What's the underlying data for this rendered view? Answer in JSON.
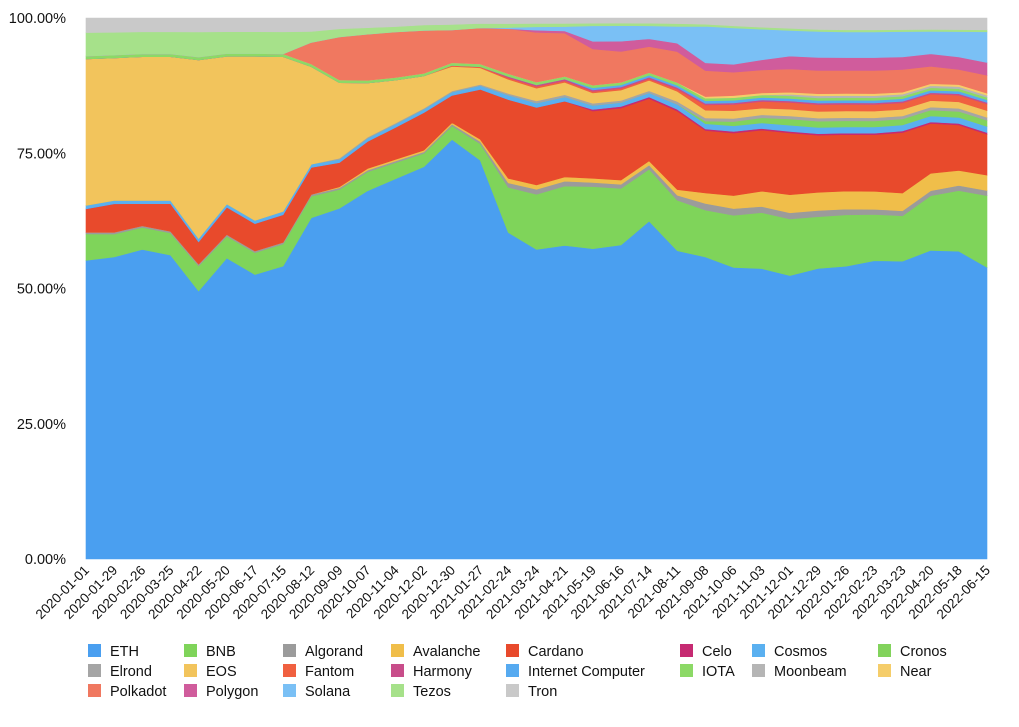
{
  "chart_data": {
    "type": "area",
    "stacked": true,
    "normalized": true,
    "title": "",
    "xlabel": "",
    "ylabel": "",
    "ylim": [
      0,
      100
    ],
    "y_ticks": [
      "0.00%",
      "25.00%",
      "50.00%",
      "75.00%",
      "100.00%"
    ],
    "x_tick_labels": [
      "2020-01-01",
      "2020-01-29",
      "2020-02-26",
      "2020-03-25",
      "2020-04-22",
      "2020-05-20",
      "2020-06-17",
      "2020-07-15",
      "2020-08-12",
      "2020-09-09",
      "2020-10-07",
      "2020-11-04",
      "2020-12-02",
      "2020-12-30",
      "2021-01-27",
      "2021-02-24",
      "2021-03-24",
      "2021-04-21",
      "2021-05-19",
      "2021-06-16",
      "2021-07-14",
      "2021-08-11",
      "2021-09-08",
      "2021-10-06",
      "2021-11-03",
      "2021-12-01",
      "2021-12-29",
      "2022-01-26",
      "2022-02-23",
      "2022-03-23",
      "2022-04-20",
      "2022-05-18",
      "2022-06-15"
    ],
    "x": [
      "2020-01-01",
      "2020-01-29",
      "2020-02-26",
      "2020-03-25",
      "2020-04-22",
      "2020-05-20",
      "2020-06-17",
      "2020-07-15",
      "2020-08-12",
      "2020-09-09",
      "2020-10-07",
      "2020-11-04",
      "2020-12-02",
      "2020-12-30",
      "2021-01-27",
      "2021-02-24",
      "2021-03-24",
      "2021-04-21",
      "2021-05-19",
      "2021-06-16",
      "2021-07-14",
      "2021-08-11",
      "2021-09-08",
      "2021-10-06",
      "2021-11-03",
      "2021-12-01",
      "2021-12-29",
      "2022-01-26",
      "2022-02-23",
      "2022-03-23",
      "2022-04-20",
      "2022-05-18",
      "2022-06-15"
    ],
    "legend_position": "bottom",
    "grid": false,
    "series": [
      {
        "name": "ETH",
        "color": "#4a9ff0",
        "values": [
          51,
          53,
          56,
          55,
          48,
          55,
          52,
          53,
          63,
          65,
          68,
          71,
          73,
          77,
          72,
          58,
          56,
          58,
          60,
          61,
          65,
          55,
          58,
          56,
          57,
          55,
          56,
          57,
          58,
          59,
          62,
          61,
          57
        ]
      },
      {
        "name": "BNB",
        "color": "#7fd45a",
        "values": [
          4.5,
          4,
          4,
          4,
          4.5,
          4,
          4,
          4,
          4,
          3.5,
          3.5,
          3,
          2.5,
          2.5,
          3,
          8,
          10,
          11,
          12,
          11,
          10,
          9,
          9,
          10,
          11,
          11,
          10,
          10,
          9,
          9,
          11,
          12,
          14
        ]
      },
      {
        "name": "Algorand",
        "color": "#9b9b9b",
        "values": [
          0.3,
          0.3,
          0.3,
          0.3,
          0.3,
          0.3,
          0.3,
          0.3,
          0.3,
          0.3,
          0.3,
          0.3,
          0.3,
          0.3,
          0.4,
          0.8,
          0.9,
          0.9,
          0.8,
          0.8,
          0.8,
          0.9,
          1.3,
          1.3,
          1.2,
          1.2,
          1.2,
          1.1,
          1,
          1,
          1,
          1,
          1
        ]
      },
      {
        "name": "Avalanche",
        "color": "#f0be4a",
        "values": [
          0,
          0,
          0,
          0,
          0,
          0,
          0,
          0,
          0,
          0.2,
          0.3,
          0.3,
          0.3,
          0.3,
          0.4,
          0.8,
          0.8,
          0.8,
          0.8,
          0.8,
          0.8,
          1,
          2,
          2.5,
          3,
          3.5,
          3.5,
          3.5,
          3.5,
          3.5,
          3.5,
          3,
          3
        ]
      },
      {
        "name": "Cardano",
        "color": "#e84a2c",
        "values": [
          4,
          5,
          4,
          5,
          4,
          5,
          5,
          5,
          5,
          4.5,
          5,
          6,
          7,
          5,
          9,
          14,
          14,
          14,
          13,
          14,
          12,
          14,
          12,
          12,
          12,
          12,
          11,
          11,
          11,
          12,
          10,
          9,
          8
        ]
      },
      {
        "name": "Celo",
        "color": "#c62a72",
        "values": [
          0,
          0,
          0,
          0,
          0,
          0,
          0,
          0,
          0,
          0,
          0,
          0,
          0,
          0,
          0,
          0,
          0,
          0,
          0.3,
          0.3,
          0.3,
          0.3,
          0.3,
          0.3,
          0.3,
          0.3,
          0.3,
          0.3,
          0.3,
          0.3,
          0.3,
          0.3,
          0.3
        ]
      },
      {
        "name": "Cosmos",
        "color": "#5ab0f0",
        "values": [
          0.6,
          0.6,
          0.6,
          0.6,
          0.6,
          0.6,
          0.6,
          0.6,
          0.6,
          0.6,
          0.6,
          0.6,
          0.6,
          0.6,
          0.7,
          0.8,
          0.8,
          0.8,
          0.8,
          0.8,
          0.8,
          0.9,
          1,
          1.1,
          1.1,
          1.2,
          1.2,
          1.2,
          1.2,
          1.2,
          1.2,
          1.2,
          1.2
        ]
      },
      {
        "name": "Cronos",
        "color": "#82d35c",
        "values": [
          0,
          0,
          0,
          0,
          0,
          0,
          0,
          0,
          0,
          0,
          0,
          0,
          0,
          0,
          0,
          0,
          0,
          0,
          0,
          0,
          0,
          0,
          0.5,
          0.8,
          1,
          1.2,
          1.2,
          1.2,
          1.2,
          1.2,
          1.2,
          1.2,
          1.2
        ]
      },
      {
        "name": "Elrond",
        "color": "#a5a5a5",
        "values": [
          0,
          0,
          0,
          0,
          0,
          0,
          0,
          0,
          0,
          0.2,
          0.2,
          0.2,
          0.2,
          0.2,
          0.2,
          0.3,
          0.4,
          0.4,
          0.4,
          0.4,
          0.4,
          0.5,
          0.6,
          0.6,
          0.6,
          0.6,
          0.6,
          0.6,
          0.6,
          0.6,
          0.6,
          0.6,
          0.6
        ]
      },
      {
        "name": "EOS",
        "color": "#f2c45c",
        "values": [
          25,
          25,
          26,
          26,
          32,
          27,
          30,
          28,
          18,
          14,
          10,
          8,
          6,
          4.5,
          3,
          2.5,
          2.3,
          2.3,
          2,
          2,
          2,
          1.8,
          1.5,
          1.5,
          1.3,
          1.3,
          1.3,
          1.3,
          1.3,
          1.3,
          1.3,
          1.3,
          1.3
        ]
      },
      {
        "name": "Fantom",
        "color": "#f06040",
        "values": [
          0,
          0,
          0,
          0,
          0,
          0,
          0,
          0,
          0,
          0,
          0,
          0,
          0,
          0.2,
          0.2,
          0.3,
          0.3,
          0.3,
          0.3,
          0.3,
          0.3,
          0.4,
          1,
          1.2,
          1.3,
          1.3,
          1.3,
          1.3,
          1.3,
          1.3,
          1.3,
          1.3,
          1.3
        ]
      },
      {
        "name": "Harmony",
        "color": "#c84d8a",
        "values": [
          0,
          0,
          0,
          0,
          0,
          0,
          0,
          0,
          0,
          0,
          0,
          0,
          0,
          0,
          0,
          0.2,
          0.3,
          0.3,
          0.3,
          0.3,
          0.3,
          0.3,
          0.3,
          0.3,
          0.3,
          0.3,
          0.3,
          0.3,
          0.3,
          0.3,
          0.3,
          0.3,
          0.3
        ]
      },
      {
        "name": "Internet Computer",
        "color": "#56aaf0",
        "values": [
          0,
          0,
          0,
          0,
          0,
          0,
          0,
          0,
          0,
          0,
          0,
          0,
          0,
          0,
          0,
          0,
          0,
          0,
          0.4,
          0.4,
          0.4,
          0.4,
          0.5,
          0.5,
          0.5,
          0.5,
          0.5,
          0.5,
          0.5,
          0.5,
          0.5,
          0.5,
          0.5
        ]
      },
      {
        "name": "IOTA",
        "color": "#8cd966",
        "values": [
          0.5,
          0.5,
          0.5,
          0.5,
          0.5,
          0.5,
          0.5,
          0.5,
          0.5,
          0.5,
          0.5,
          0.5,
          0.5,
          0.5,
          0.5,
          0.5,
          0.5,
          0.5,
          0.5,
          0.5,
          0.5,
          0.5,
          0.5,
          0.5,
          0.5,
          0.5,
          0.5,
          0.5,
          0.5,
          0.5,
          0.5,
          0.5,
          0.5
        ]
      },
      {
        "name": "Moonbeam",
        "color": "#b5b5b5",
        "values": [
          0,
          0,
          0,
          0,
          0,
          0,
          0,
          0,
          0,
          0,
          0,
          0,
          0,
          0,
          0,
          0,
          0,
          0,
          0,
          0,
          0,
          0,
          0,
          0,
          0,
          0.3,
          0.4,
          0.4,
          0.4,
          0.4,
          0.4,
          0.4,
          0.4
        ]
      },
      {
        "name": "Near",
        "color": "#f5cd6a",
        "values": [
          0,
          0,
          0,
          0,
          0,
          0,
          0,
          0,
          0,
          0,
          0,
          0,
          0,
          0,
          0,
          0,
          0,
          0,
          0,
          0,
          0,
          0,
          0.3,
          0.4,
          0.4,
          0.4,
          0.4,
          0.4,
          0.4,
          0.4,
          0.4,
          0.4,
          0.4
        ]
      },
      {
        "name": "Polkadot",
        "color": "#f07860",
        "values": [
          0,
          0,
          0,
          0,
          0,
          0,
          0,
          0,
          4,
          8,
          8.5,
          8.5,
          8,
          6,
          6.5,
          8,
          9,
          8,
          7,
          6,
          5,
          5.5,
          5,
          4.5,
          4.5,
          4.5,
          4.5,
          4.5,
          4.5,
          4.5,
          3.5,
          3,
          3.5
        ]
      },
      {
        "name": "Polygon",
        "color": "#d05c9c",
        "values": [
          0,
          0,
          0,
          0,
          0,
          0,
          0,
          0,
          0,
          0,
          0,
          0,
          0,
          0,
          0,
          0,
          0.4,
          0.4,
          1.5,
          2,
          1.5,
          1.5,
          1.5,
          1.5,
          2,
          2.5,
          2.5,
          2.5,
          2.5,
          2.5,
          2.5,
          2.5,
          2.5
        ]
      },
      {
        "name": "Solana",
        "color": "#7ac0f5",
        "values": [
          0,
          0,
          0,
          0,
          0,
          0,
          0,
          0,
          0,
          0,
          0,
          0,
          0,
          0,
          0,
          0.2,
          0.6,
          0.8,
          3,
          3,
          2.5,
          3,
          7,
          7,
          6,
          5,
          5,
          5,
          5,
          5,
          4.5,
          5,
          6
        ]
      },
      {
        "name": "Tezos",
        "color": "#a6e18a",
        "values": [
          4,
          4,
          4,
          4,
          4.5,
          4,
          4,
          4,
          2,
          1.5,
          1.2,
          1,
          1,
          1,
          0.8,
          0.7,
          0.6,
          0.6,
          0.5,
          0.5,
          0.5,
          0.5,
          0.4,
          0.4,
          0.4,
          0.4,
          0.4,
          0.4,
          0.4,
          0.4,
          0.4,
          0.4,
          0.4
        ]
      },
      {
        "name": "Tron",
        "color": "#c9c9c9",
        "values": [
          2.5,
          2.5,
          2.5,
          2.5,
          2.5,
          2.5,
          2.5,
          2.5,
          2.5,
          2,
          1.8,
          1.6,
          1.3,
          1.2,
          1,
          1,
          1,
          1,
          1,
          1,
          1,
          1,
          1.2,
          1.5,
          1.8,
          2,
          2.2,
          2.3,
          2.3,
          2.3,
          2.3,
          2.3,
          2.3
        ]
      }
    ]
  }
}
